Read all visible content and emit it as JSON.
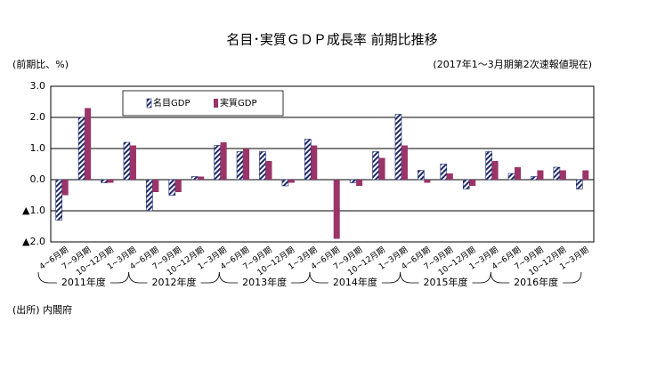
{
  "chart_data": {
    "type": "bar",
    "title": "名目･実質ＧＤＰ成長率 前期比推移",
    "y_axis_label": "(前期比、%)",
    "note": "(2017年1～3月期第2次速報値現在)",
    "source": "(出所) 内閣府",
    "categories": [
      "4~6月期",
      "7~9月期",
      "10~12月期",
      "1~3月期",
      "4~6月期",
      "7~9月期",
      "10~12月期",
      "1~3月期",
      "4~6月期",
      "7~9月期",
      "10~12月期",
      "1~3月期",
      "4~6月期",
      "7~9月期",
      "10~12月期",
      "1~3月期",
      "4~6月期",
      "7~9月期",
      "10~12月期",
      "1~3月期",
      "4~6月期",
      "7~9月期",
      "10~12月期",
      "1~3月期"
    ],
    "groups": [
      "2011年度",
      "2012年度",
      "2013年度",
      "2014年度",
      "2015年度",
      "2016年度"
    ],
    "series": [
      {
        "name": "名目GDP",
        "color": "#1f2a6b",
        "hatched": true,
        "values": [
          -1.3,
          2.0,
          -0.1,
          1.2,
          -1.0,
          -0.5,
          0.1,
          1.1,
          0.9,
          0.9,
          -0.2,
          1.3,
          0.0,
          -0.1,
          0.9,
          2.1,
          0.3,
          0.5,
          -0.3,
          0.9,
          0.2,
          0.1,
          0.4,
          -0.3
        ]
      },
      {
        "name": "実質GDP",
        "color": "#9b3468",
        "hatched": false,
        "values": [
          -0.5,
          2.3,
          -0.1,
          1.1,
          -0.4,
          -0.4,
          0.1,
          1.2,
          1.0,
          0.6,
          -0.1,
          1.1,
          -1.9,
          -0.2,
          0.7,
          1.1,
          -0.1,
          0.2,
          -0.2,
          0.6,
          0.4,
          0.3,
          0.3,
          0.3
        ]
      }
    ],
    "ylim": [
      -2,
      3
    ],
    "yticks": [
      {
        "value": 3,
        "label": "3.0"
      },
      {
        "value": 2,
        "label": "2.0"
      },
      {
        "value": 1,
        "label": "1.0"
      },
      {
        "value": 0,
        "label": "0.0"
      },
      {
        "value": -1,
        "label": "▲1.0"
      },
      {
        "value": -2,
        "label": "▲2.0"
      }
    ],
    "grid": true
  }
}
